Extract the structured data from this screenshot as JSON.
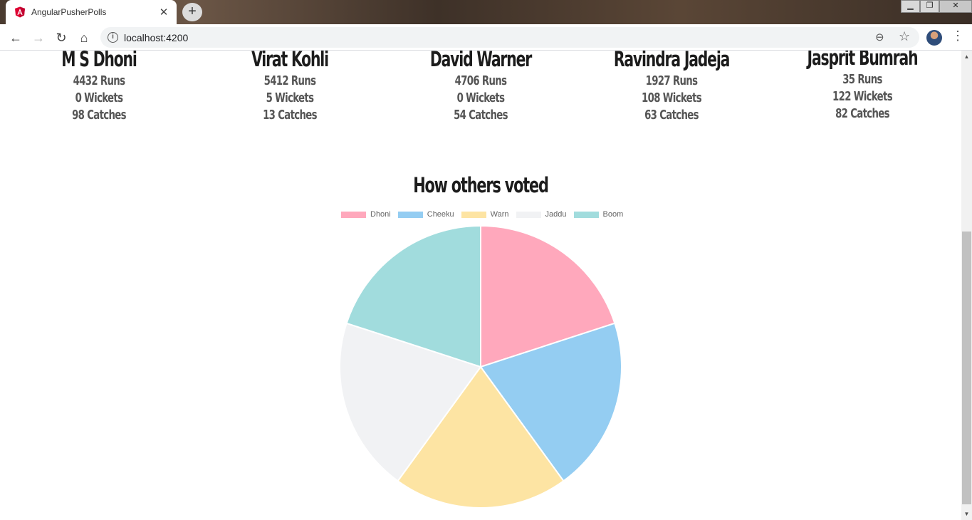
{
  "browser": {
    "tab_title": "AngularPusherPolls",
    "tab_close": "✕",
    "new_tab": "+",
    "url": "localhost:4200",
    "controls": {
      "minimize": "▁",
      "restore": "❐",
      "close": "✕"
    },
    "icons": {
      "favicon": "angular-logo-icon",
      "back": "back-arrow-icon",
      "forward": "forward-arrow-icon",
      "reload": "reload-icon",
      "home": "home-icon",
      "info": "info-icon",
      "zoom": "zoom-icon",
      "bookmark": "star-icon",
      "menu": "kebab-menu-icon"
    },
    "glyphs": {
      "back": "←",
      "forward": "→",
      "reload": "↻",
      "home": "⌂",
      "info": "i",
      "zoom": "⊖",
      "star": "☆",
      "menu": "⋮"
    }
  },
  "players": [
    {
      "name": "M S Dhoni",
      "runs": "4432 Runs",
      "wickets": "0 Wickets",
      "catches": "98 Catches"
    },
    {
      "name": "Virat Kohli",
      "runs": "5412 Runs",
      "wickets": "5 Wickets",
      "catches": "13 Catches"
    },
    {
      "name": "David Warner",
      "runs": "4706 Runs",
      "wickets": "0 Wickets",
      "catches": "54 Catches"
    },
    {
      "name": "Ravindra Jadeja",
      "runs": "1927 Runs",
      "wickets": "108 Wickets",
      "catches": "63 Catches"
    },
    {
      "name": "Jasprit Bumrah",
      "runs": "35 Runs",
      "wickets": "122 Wickets",
      "catches": "82 Catches"
    }
  ],
  "chart_title": "How others voted",
  "chart_data": {
    "type": "pie",
    "title": "How others voted",
    "legend_position": "top",
    "categories": [
      "Dhoni",
      "Cheeku",
      "Warn",
      "Jaddu",
      "Boom"
    ],
    "values": [
      1,
      1,
      1,
      1,
      1
    ],
    "colors": [
      "#ffa8bc",
      "#94cdf2",
      "#fde4a3",
      "#f1f2f4",
      "#a1dcdd"
    ]
  },
  "scrollbar": {
    "up": "▲",
    "down": "▼"
  }
}
